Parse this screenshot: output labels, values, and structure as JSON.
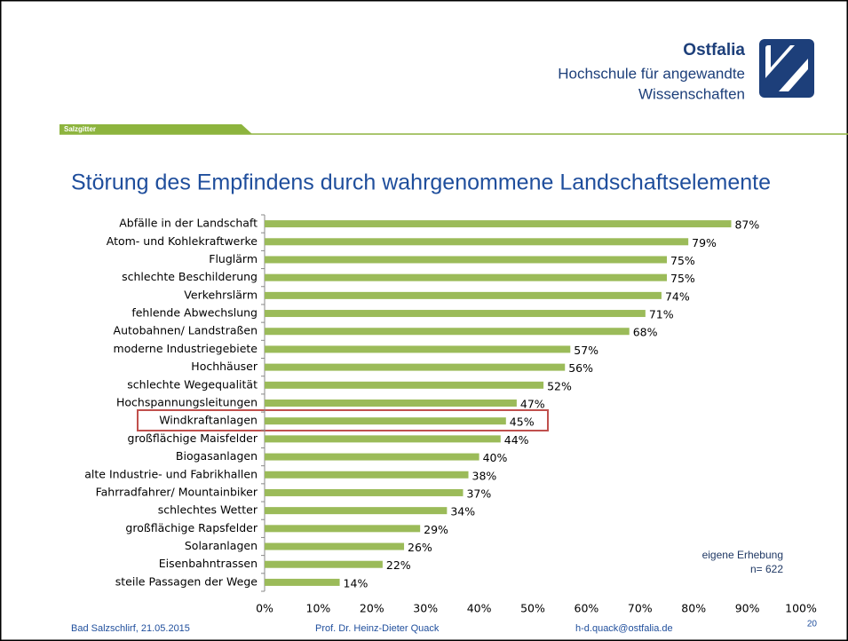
{
  "header": {
    "institution": "Ostfalia",
    "line1": "Hochschule für angewandte",
    "line2": "Wissenschaften",
    "campus": "Salzgitter"
  },
  "chart_data": {
    "type": "hbar",
    "title": "Störung des Empfindens durch wahrgenommene Landschaftselemente",
    "categories": [
      "Abfälle in der Landschaft",
      "Atom- und Kohlekraftwerke",
      "Fluglärm",
      "schlechte Beschilderung",
      "Verkehrslärm",
      "fehlende Abwechslung",
      "Autobahnen/ Landstraßen",
      "moderne Industriegebiete",
      "Hochhäuser",
      "schlechte Wegequalität",
      "Hochspannungsleitungen",
      "Windkraftanlagen",
      "großflächige Maisfelder",
      "Biogasanlagen",
      "alte Industrie- und Fabrikhallen",
      "Fahrradfahrer/ Mountainbiker",
      "schlechtes Wetter",
      "großflächige Rapsfelder",
      "Solaranlagen",
      "Eisenbahntrassen",
      "steile Passagen der Wege"
    ],
    "values": [
      87,
      79,
      75,
      75,
      74,
      71,
      68,
      57,
      56,
      52,
      47,
      45,
      44,
      40,
      38,
      37,
      34,
      29,
      26,
      22,
      14
    ],
    "value_labels": [
      "87%",
      "79%",
      "75%",
      "75%",
      "74%",
      "71%",
      "68%",
      "57%",
      "56%",
      "52%",
      "47%",
      "45%",
      "44%",
      "40%",
      "38%",
      "37%",
      "34%",
      "29%",
      "26%",
      "22%",
      "14%"
    ],
    "color": "#9bbb59",
    "xlim": [
      0,
      100
    ],
    "xticks": [
      {
        "value": 0,
        "label": "0%"
      },
      {
        "value": 10,
        "label": "10%"
      },
      {
        "value": 20,
        "label": "20%"
      },
      {
        "value": 30,
        "label": "30%"
      },
      {
        "value": 40,
        "label": "40%"
      },
      {
        "value": 50,
        "label": "50%"
      },
      {
        "value": 60,
        "label": "60%"
      },
      {
        "value": 70,
        "label": "70%"
      },
      {
        "value": 80,
        "label": "80%"
      },
      {
        "value": 90,
        "label": "90%"
      },
      {
        "value": 100,
        "label": "100%"
      }
    ],
    "annotations": [
      "eigene Erhebung",
      "n= 622"
    ]
  },
  "footer": {
    "place_date": "Bad Salzschlirf, 21.05.2015",
    "author": "Prof. Dr. Heinz-Dieter Quack",
    "email": "h-d.quack@ostfalia.de",
    "page": "20"
  }
}
